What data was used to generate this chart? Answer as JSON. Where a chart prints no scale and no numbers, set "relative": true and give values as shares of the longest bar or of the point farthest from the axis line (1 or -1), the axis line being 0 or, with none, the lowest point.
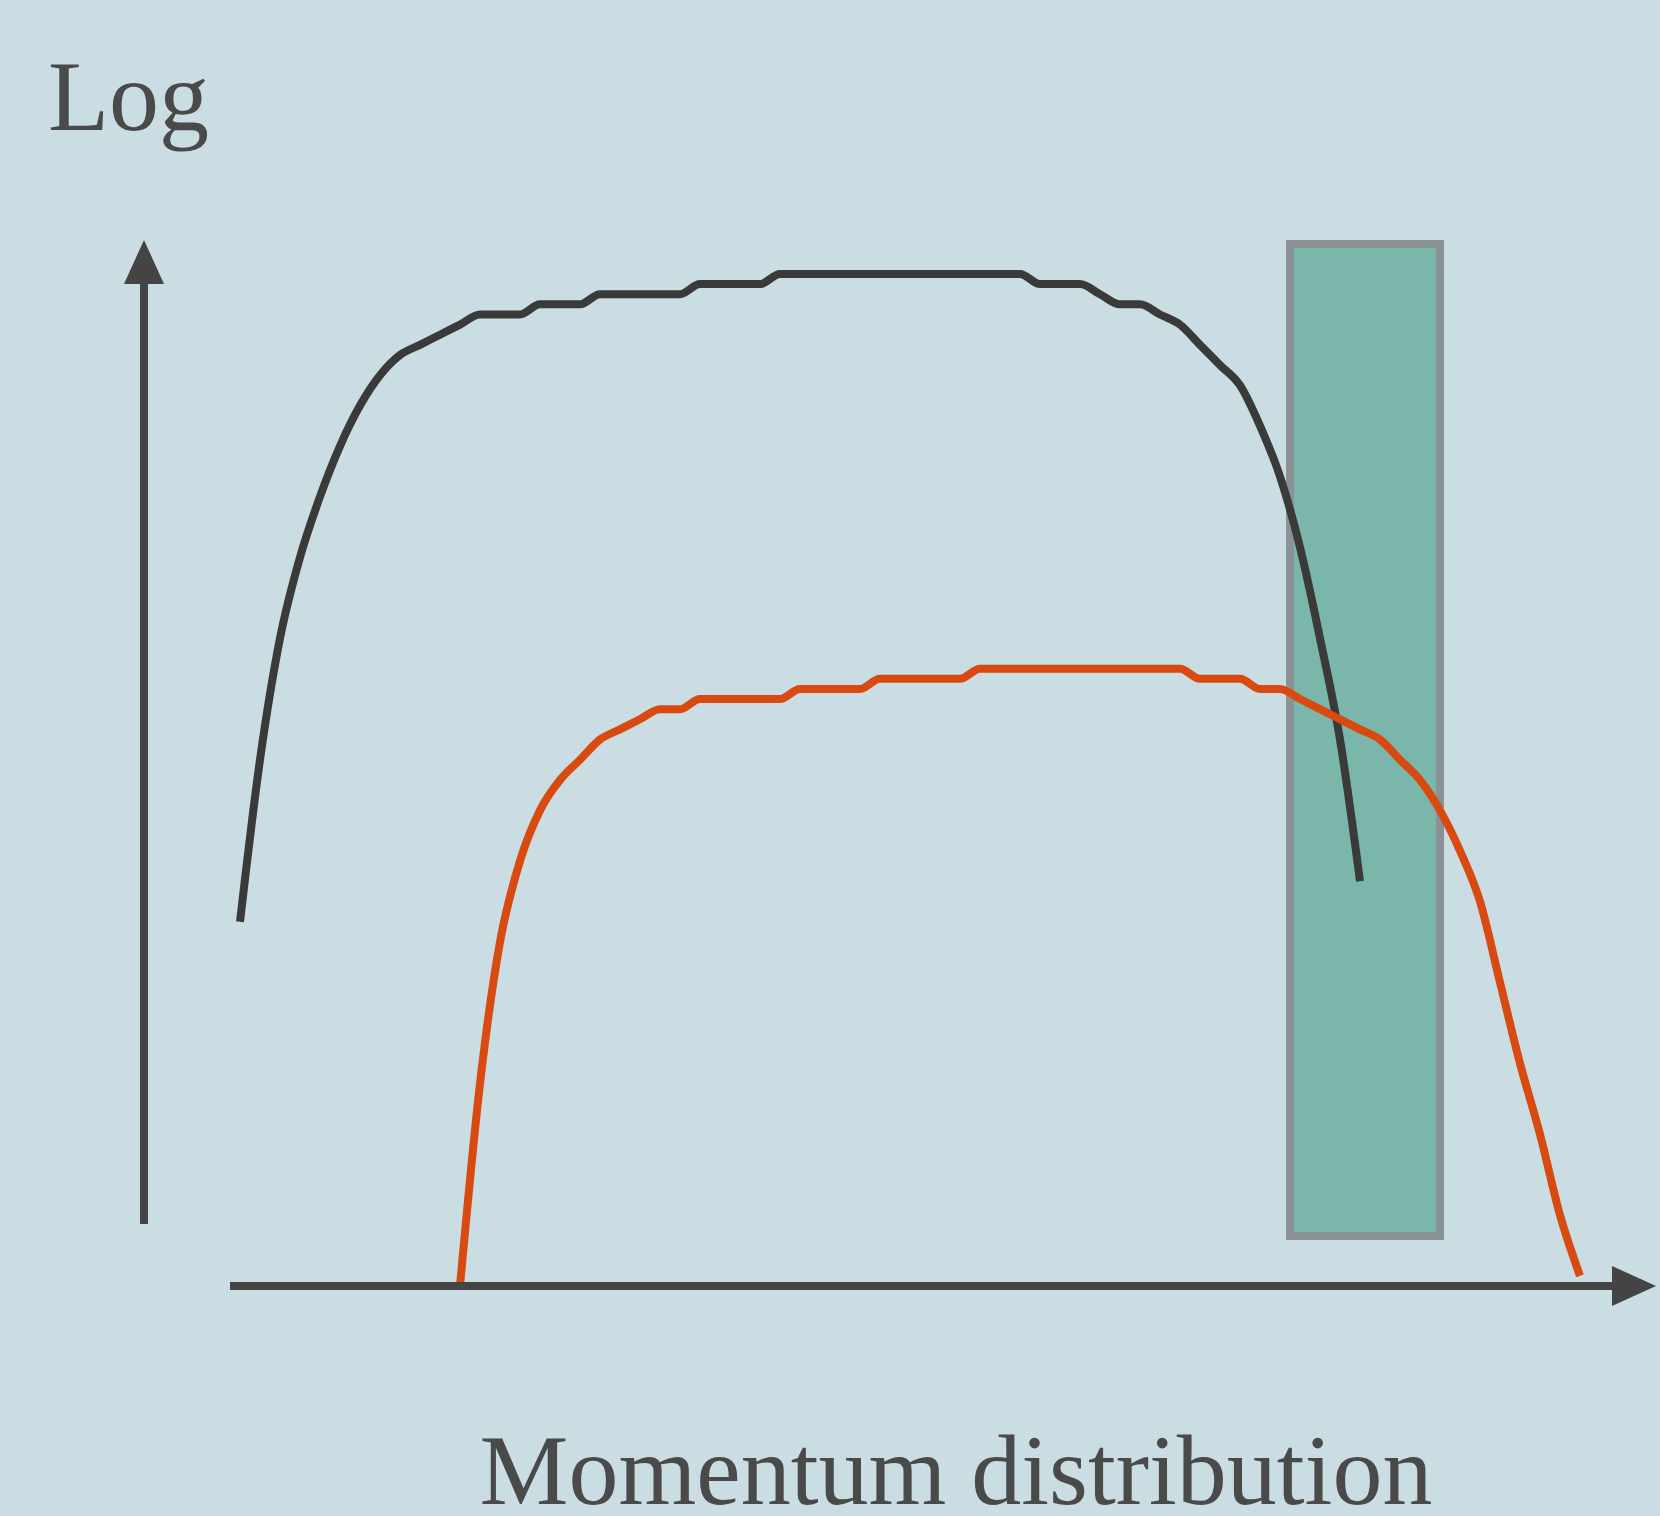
{
  "chart_data": {
    "type": "line",
    "relative": true,
    "ylabel": "Log",
    "xlabel": "Momentum distribution",
    "categories": [
      null,
      null,
      null,
      null,
      null,
      null,
      null,
      null,
      null,
      null,
      null,
      null,
      null,
      null,
      null,
      null,
      null,
      null,
      null,
      null,
      null,
      null,
      null,
      null,
      null,
      null,
      null,
      null,
      null,
      null,
      null,
      null,
      null,
      null,
      null,
      null,
      null,
      null,
      null,
      null,
      null,
      null,
      null,
      null,
      null,
      null,
      null,
      null,
      null,
      null,
      null,
      null,
      null,
      null,
      null,
      null,
      null,
      null,
      null,
      null,
      null,
      null,
      null,
      null,
      null,
      null,
      null,
      null
    ],
    "series": [
      {
        "color": "#3a3a3a",
        "values": [
          0.36,
          0.52,
          0.64,
          0.72,
          0.78,
          0.83,
          0.87,
          0.9,
          0.92,
          0.93,
          0.94,
          0.95,
          0.96,
          0.96,
          0.96,
          0.97,
          0.97,
          0.97,
          0.98,
          0.98,
          0.98,
          0.98,
          0.98,
          0.99,
          0.99,
          0.99,
          0.99,
          1.0,
          1.0,
          1.0,
          1.0,
          1.0,
          1.0,
          1.0,
          1.0,
          1.0,
          1.0,
          1.0,
          1.0,
          1.0,
          0.99,
          0.99,
          0.99,
          0.98,
          0.97,
          0.97,
          0.96,
          0.95,
          0.93,
          0.91,
          0.89,
          0.85,
          0.8,
          0.73,
          0.64,
          0.54,
          0.4,
          null,
          null,
          null,
          null,
          null,
          null,
          null,
          null,
          null,
          null,
          null
        ]
      },
      {
        "color": "#d84a10",
        "values": [
          null,
          null,
          null,
          null,
          null,
          null,
          null,
          null,
          null,
          null,
          null,
          0.0,
          0.2,
          0.34,
          0.42,
          0.47,
          0.5,
          0.52,
          0.54,
          0.55,
          0.56,
          0.57,
          0.57,
          0.58,
          0.58,
          0.58,
          0.58,
          0.58,
          0.59,
          0.59,
          0.59,
          0.59,
          0.6,
          0.6,
          0.6,
          0.6,
          0.6,
          0.61,
          0.61,
          0.61,
          0.61,
          0.61,
          0.61,
          0.61,
          0.61,
          0.61,
          0.61,
          0.61,
          0.6,
          0.6,
          0.6,
          0.59,
          0.59,
          0.58,
          0.57,
          0.56,
          0.55,
          0.54,
          0.52,
          0.5,
          0.47,
          0.43,
          0.38,
          0.3,
          0.22,
          0.15,
          0.07,
          0.01
        ]
      }
    ]
  }
}
